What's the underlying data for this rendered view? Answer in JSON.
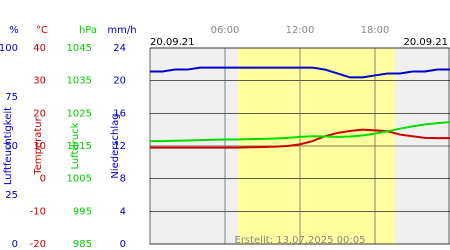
{
  "chart_data": {
    "type": "line",
    "date_left": "20.09.21",
    "date_right": "20.09.21",
    "footer": "Erstellt: 13.07.2025 00:05",
    "xlim": [
      0,
      24
    ],
    "xticks": [
      {
        "value": 6,
        "label": "06:00"
      },
      {
        "value": 12,
        "label": "12:00"
      },
      {
        "value": 18,
        "label": "18:00"
      }
    ],
    "x": [
      0,
      1,
      2,
      3,
      4,
      5,
      6,
      7,
      8,
      9,
      10,
      11,
      12,
      13,
      14,
      15,
      16,
      17,
      18,
      19,
      20,
      21,
      22,
      23,
      24
    ],
    "axes": [
      {
        "unit": "%",
        "title": "Luftfeuchtigkeit",
        "color": "#0000cc",
        "ylim": [
          0,
          100
        ],
        "yticks": [
          0,
          25,
          50,
          75,
          100
        ],
        "series": {
          "name": "Luftfeuchtigkeit",
          "color": "#0000cc",
          "values": [
            88,
            88,
            89,
            89,
            90,
            90,
            90,
            90,
            90,
            90,
            90,
            90,
            90,
            90,
            89,
            87,
            85,
            85,
            86,
            87,
            87,
            88,
            88,
            89,
            89
          ]
        }
      },
      {
        "unit": "°C",
        "title": "Temperatur",
        "color": "#cc0000",
        "ylim": [
          -20,
          40
        ],
        "yticks": [
          -20,
          -10,
          0,
          10,
          20,
          30,
          40
        ],
        "series": {
          "name": "Temperatur",
          "color": "#cc0000",
          "values": [
            9.5,
            9.5,
            9.5,
            9.5,
            9.5,
            9.5,
            9.5,
            9.5,
            9.6,
            9.7,
            9.8,
            10,
            10.5,
            11.5,
            13,
            14,
            14.6,
            15,
            14.8,
            14.5,
            13.5,
            13,
            12.5,
            12.4,
            12.4
          ]
        }
      },
      {
        "unit": "hPa",
        "title": "Luftdruck",
        "color": "#00cc00",
        "ylim": [
          985,
          1045
        ],
        "yticks": [
          985,
          995,
          1005,
          1015,
          1025,
          1035,
          1045
        ],
        "series": {
          "name": "Luftdruck",
          "color": "#00dd00",
          "values": [
            1016.5,
            1016.5,
            1016.6,
            1016.7,
            1016.8,
            1016.9,
            1017,
            1017,
            1017.1,
            1017.2,
            1017.3,
            1017.5,
            1017.8,
            1018,
            1017.9,
            1017.8,
            1017.9,
            1018.2,
            1018.8,
            1019.5,
            1020.3,
            1021,
            1021.6,
            1022,
            1022.3
          ]
        }
      },
      {
        "unit": "mm/h",
        "title": "Niederschlag",
        "color": "#0000cc",
        "ylim": [
          0,
          24
        ],
        "yticks": [
          0,
          4,
          8,
          12,
          16,
          20,
          24
        ]
      }
    ]
  }
}
